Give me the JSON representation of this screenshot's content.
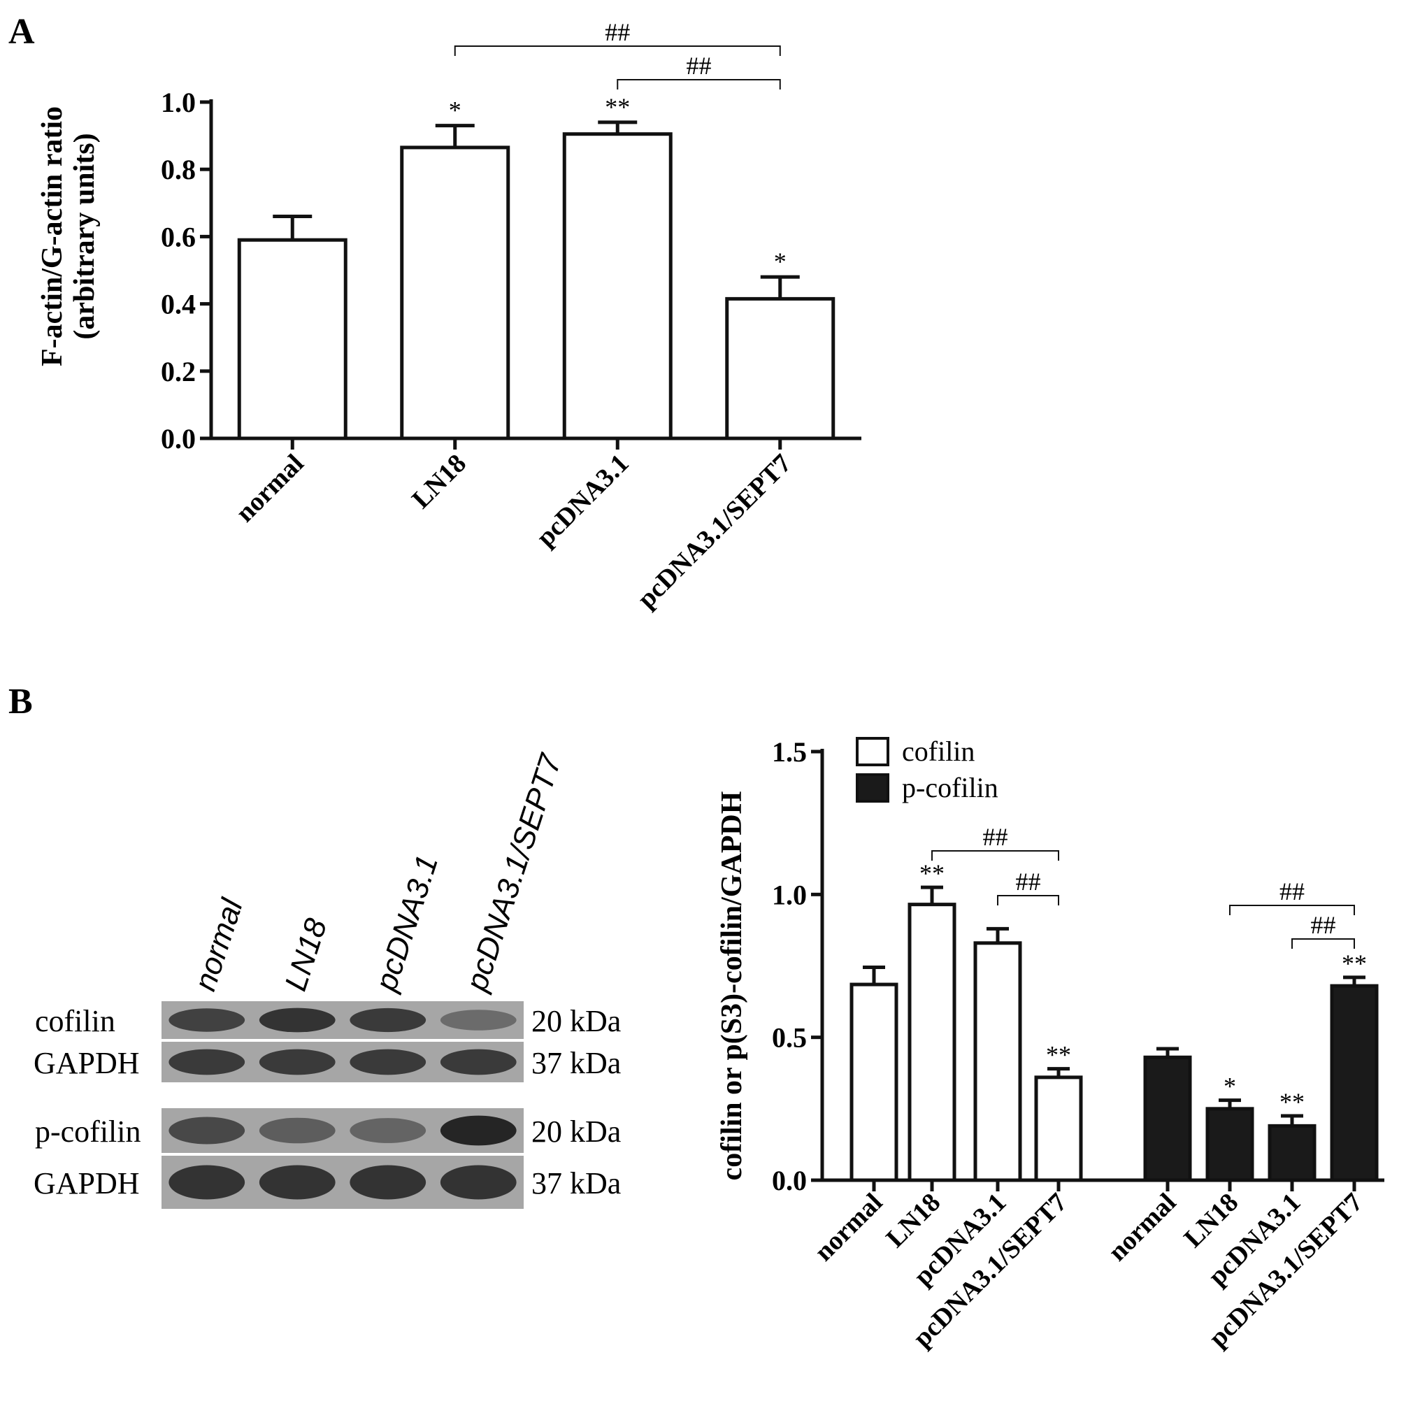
{
  "panel_a": {
    "letter": "A",
    "ylabel_line1": "F-actin/G-actin ratio",
    "ylabel_line2": "(arbitrary units)"
  },
  "panel_b": {
    "letter": "B",
    "blot": {
      "lanes": [
        "normal",
        "LN18",
        "pcDNA3.1",
        "pcDNA3.1/SEPT7"
      ],
      "rows": [
        {
          "label": "cofilin",
          "kda": "20  kDa",
          "intensity": [
            0.75,
            0.85,
            0.8,
            0.45
          ]
        },
        {
          "label": "GAPDH",
          "kda": "37  kDa",
          "intensity": [
            0.8,
            0.8,
            0.8,
            0.8
          ]
        },
        {
          "label": "p-cofilin",
          "kda": "20  kDa",
          "intensity": [
            0.7,
            0.55,
            0.5,
            0.95
          ]
        },
        {
          "label": "GAPDH",
          "kda": "37  kDa",
          "intensity": [
            0.85,
            0.85,
            0.85,
            0.85
          ]
        }
      ]
    },
    "ylabel": "cofilin or p(S3)-cofilin/GAPDH"
  },
  "chart_data": [
    {
      "type": "bar",
      "title": "",
      "xlabel": "",
      "ylabel": "F-actin/G-actin ratio (arbitrary units)",
      "categories": [
        "normal",
        "LN18",
        "pcDNA3.1",
        "pcDNA3.1/SEPT7"
      ],
      "values": [
        0.59,
        0.865,
        0.905,
        0.415
      ],
      "errors": [
        0.07,
        0.065,
        0.035,
        0.065
      ],
      "significance": [
        "",
        "*",
        "**",
        "*"
      ],
      "brackets": [
        {
          "from": 1,
          "to": 3,
          "label": "##"
        },
        {
          "from": 2,
          "to": 3,
          "label": "##"
        }
      ],
      "ylim": [
        0,
        1.0
      ],
      "yticks": [
        "0.0",
        "0.2",
        "0.4",
        "0.6",
        "0.8",
        "1.0"
      ],
      "grid": false,
      "colors": {
        "fill": "#ffffff",
        "stroke": "#111111"
      }
    },
    {
      "type": "bar",
      "title": "",
      "xlabel": "",
      "ylabel": "cofilin or p(S3)-cofilin/GAPDH",
      "categories": [
        "normal",
        "LN18",
        "pcDNA3.1",
        "pcDNA3.1/SEPT7"
      ],
      "series": [
        {
          "name": "cofilin",
          "values": [
            0.685,
            0.965,
            0.83,
            0.36
          ],
          "errors": [
            0.06,
            0.06,
            0.05,
            0.03
          ],
          "significance": [
            "",
            "**",
            "",
            "**"
          ],
          "color": "#ffffff"
        },
        {
          "name": "p-cofilin",
          "values": [
            0.43,
            0.25,
            0.19,
            0.68
          ],
          "errors": [
            0.03,
            0.03,
            0.035,
            0.03
          ],
          "significance": [
            "",
            "*",
            "**",
            "**"
          ],
          "color": "#1a1a1a"
        }
      ],
      "brackets": [
        {
          "series": 0,
          "from": 1,
          "to": 3,
          "label": "##"
        },
        {
          "series": 0,
          "from": 2,
          "to": 3,
          "label": "##"
        },
        {
          "series": 1,
          "from": 1,
          "to": 3,
          "label": "##"
        },
        {
          "series": 1,
          "from": 2,
          "to": 3,
          "label": "##"
        }
      ],
      "ylim": [
        0,
        1.5
      ],
      "yticks": [
        "0.0",
        "0.5",
        "1.0",
        "1.5"
      ],
      "legend_position": "top-left",
      "grid": false
    }
  ]
}
